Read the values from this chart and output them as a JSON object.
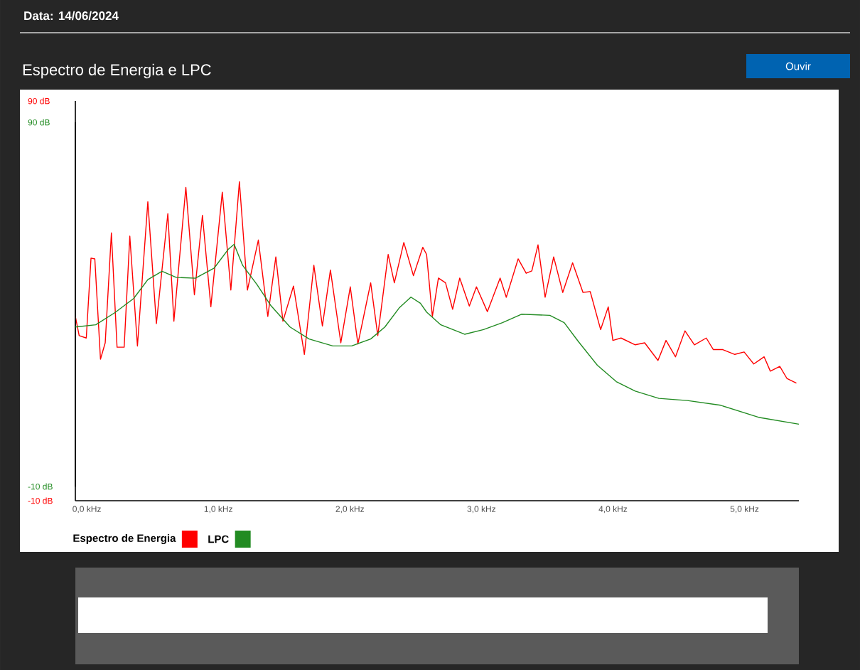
{
  "chart_data": {
    "type": "line",
    "title": "Espectro de Energia e LPC",
    "annotations": [
      "Data: 14/06/2024",
      "Ouvir"
    ],
    "xlim": [
      -0.087,
      5.413
    ],
    "xticks": [
      {
        "value": 0,
        "label": "0,0 kHz"
      },
      {
        "value": 1,
        "label": "1,0 kHz"
      },
      {
        "value": 2,
        "label": "2,0 kHz"
      },
      {
        "value": 3,
        "label": "3,0 kHz"
      },
      {
        "value": 4,
        "label": "4,0 kHz"
      },
      {
        "value": 5,
        "label": "5,0 kHz"
      }
    ],
    "ylim": [
      -10,
      90
    ],
    "yticks": [
      {
        "value": -10,
        "label": "-10 dB"
      },
      {
        "value": 90,
        "label": "90 dB"
      }
    ],
    "y2lim": [
      -10,
      90
    ],
    "y2ticks": [
      {
        "value": -10,
        "label": "-10 dB"
      },
      {
        "value": 90,
        "label": "90 dB"
      }
    ],
    "legend": "bottom",
    "grid": false,
    "marker": "none",
    "line_style": "solid",
    "series": [
      {
        "name": "Espectro de Energia",
        "color": "#ff0000",
        "x": [
          -0.087,
          -0.058,
          -0.004,
          0.032,
          0.061,
          0.104,
          0.14,
          0.187,
          0.23,
          0.284,
          0.327,
          0.385,
          0.464,
          0.529,
          0.616,
          0.662,
          0.753,
          0.818,
          0.879,
          0.943,
          1.03,
          1.095,
          1.16,
          1.221,
          1.304,
          1.376,
          1.437,
          1.491,
          1.571,
          1.654,
          1.726,
          1.791,
          1.852,
          1.931,
          2.003,
          2.061,
          2.158,
          2.212,
          2.291,
          2.338,
          2.41,
          2.483,
          2.554,
          2.583,
          2.627,
          2.673,
          2.727,
          2.781,
          2.835,
          2.908,
          2.962,
          3.045,
          3.142,
          3.189,
          3.279,
          3.34,
          3.383,
          3.43,
          3.484,
          3.549,
          3.618,
          3.693,
          3.772,
          3.827,
          3.906,
          3.964,
          3.999,
          4.061,
          4.169,
          4.241,
          4.342,
          4.403,
          4.475,
          4.547,
          4.619,
          4.709,
          4.763,
          4.835,
          4.926,
          4.997,
          5.07,
          5.149,
          5.196,
          5.268,
          5.322,
          5.394
        ],
        "values": [
          36.1,
          31.3,
          30.7,
          50.7,
          50.5,
          25.4,
          29.5,
          57,
          28.4,
          28.4,
          56.2,
          28.7,
          64.8,
          34.3,
          61.8,
          34.9,
          68.4,
          41.5,
          61.4,
          38.5,
          67.2,
          42.7,
          69.8,
          42.7,
          55.2,
          36.1,
          51,
          34.9,
          43.7,
          26.6,
          48.9,
          33.7,
          47.7,
          29.5,
          43.5,
          29.2,
          44.5,
          31.3,
          51.6,
          44.5,
          54.6,
          46.3,
          53.4,
          51.6,
          36.1,
          45.7,
          44.5,
          37.9,
          45.7,
          38.7,
          43.5,
          37.3,
          45.7,
          40.9,
          50.5,
          46.9,
          47.5,
          54,
          40.9,
          51,
          42.1,
          49.5,
          42.1,
          42.3,
          32.8,
          38.5,
          30.1,
          30.7,
          29,
          29.5,
          25.1,
          30.1,
          26,
          32.5,
          29,
          30.7,
          27.8,
          27.8,
          26.6,
          27.2,
          24.2,
          26,
          22.4,
          23.6,
          20.6,
          19.4
        ]
      },
      {
        "name": "LPC",
        "color": "#228b22",
        "axis": "y2",
        "x": [
          -0.087,
          0.068,
          0.212,
          0.356,
          0.464,
          0.572,
          0.681,
          0.825,
          0.969,
          1.077,
          1.12,
          1.185,
          1.293,
          1.401,
          1.545,
          1.69,
          1.87,
          2.014,
          2.158,
          2.266,
          2.374,
          2.464,
          2.536,
          2.583,
          2.691,
          2.872,
          3.016,
          3.16,
          3.304,
          3.52,
          3.629,
          3.737,
          3.881,
          4.025,
          4.169,
          4.349,
          4.565,
          4.818,
          5.106,
          5.413
        ],
        "values": [
          33.8,
          34.4,
          37.7,
          41.6,
          46.8,
          49.1,
          47.4,
          47.2,
          50,
          55.2,
          56.5,
          50.7,
          45.5,
          39.6,
          33.8,
          30.5,
          28.6,
          28.6,
          30.5,
          33.8,
          39,
          42,
          40.3,
          37.9,
          34.4,
          31.8,
          33.1,
          35,
          37.3,
          37,
          35,
          29.8,
          23.3,
          18.8,
          16.2,
          14.2,
          13.6,
          12.3,
          9,
          7.1
        ]
      }
    ]
  }
}
